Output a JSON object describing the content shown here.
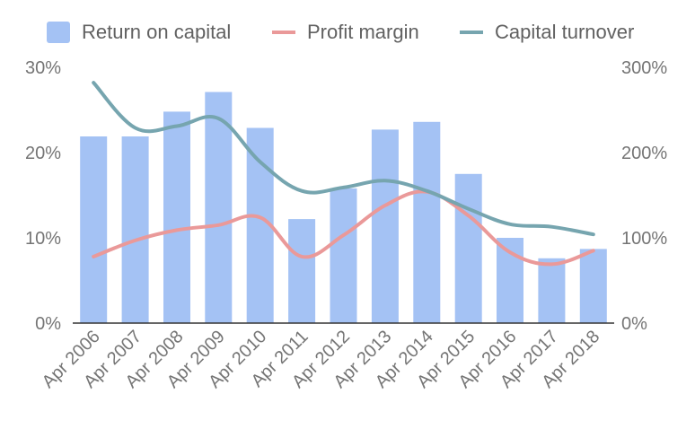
{
  "chart_data": {
    "type": "bar",
    "categories": [
      "Apr 2006",
      "Apr 2007",
      "Apr 2008",
      "Apr 2009",
      "Apr 2010",
      "Apr 2011",
      "Apr 2012",
      "Apr 2013",
      "Apr 2014",
      "Apr 2015",
      "Apr 2016",
      "Apr 2017",
      "Apr 2018"
    ],
    "series": [
      {
        "name": "Return on capital",
        "type": "bar",
        "axis": "left",
        "color": "#a4c2f4",
        "values": [
          21.9,
          21.9,
          24.8,
          27.1,
          22.9,
          12.2,
          15.8,
          22.7,
          23.6,
          17.5,
          10.0,
          7.6,
          8.7
        ]
      },
      {
        "name": "Profit margin",
        "type": "line",
        "axis": "left",
        "color": "#ea9999",
        "values": [
          7.8,
          9.7,
          10.9,
          11.5,
          12.4,
          7.8,
          10.3,
          13.8,
          15.4,
          12.6,
          8.3,
          6.9,
          8.5
        ]
      },
      {
        "name": "Capital turnover",
        "type": "line",
        "axis": "right",
        "color": "#76a5af",
        "values": [
          282,
          229,
          231,
          240,
          189,
          155,
          159,
          167,
          155,
          134,
          116,
          113,
          104
        ]
      }
    ],
    "y_left": {
      "min": 0,
      "max": 30,
      "ticks": [
        "0%",
        "10%",
        "20%",
        "30%"
      ]
    },
    "y_right": {
      "min": 0,
      "max": 300,
      "ticks": [
        "0%",
        "100%",
        "200%",
        "300%"
      ]
    },
    "legend_position": "top",
    "grid": false
  }
}
